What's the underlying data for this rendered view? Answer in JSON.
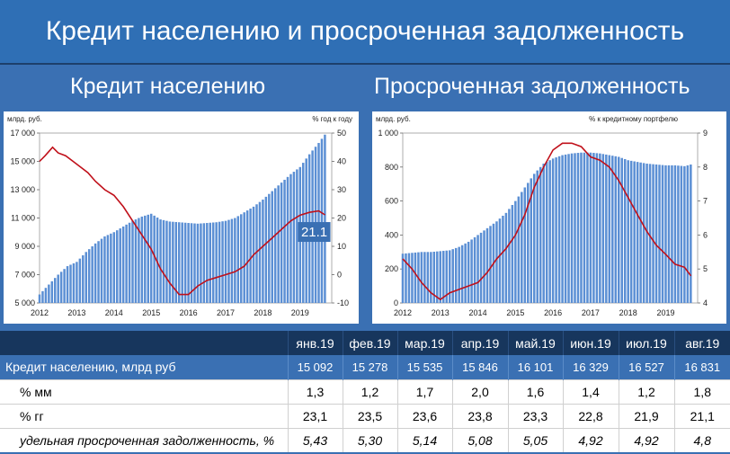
{
  "slide": {
    "title": "Кредит населению и просроченная задолженность",
    "left_title": "Кредит населению",
    "right_title": "Просроченная задолженность"
  },
  "chart_data": [
    {
      "type": "bar",
      "left_unit": "млрд. руб.",
      "right_unit": "% год к году",
      "x_labels": [
        "2012",
        "2013",
        "2014",
        "2015",
        "2016",
        "2017",
        "2018",
        "2019"
      ],
      "y_left_ticks": [
        "5 000",
        "7 000",
        "9 000",
        "11 000",
        "13 000",
        "15 000",
        "17 000"
      ],
      "y_right_ticks": [
        "-10",
        "0",
        "10",
        "20",
        "30",
        "40",
        "50"
      ],
      "ylim_left": [
        5000,
        17000
      ],
      "ylim_right": [
        -10,
        50
      ],
      "callout": "21.1",
      "bar_color": "#5b8fd4",
      "line_color": "#c0101a",
      "series": [
        {
          "name": "",
          "kind": "bar",
          "axis": "left",
          "x": [
            2012.0,
            2012.25,
            2012.5,
            2012.75,
            2013.0,
            2013.25,
            2013.5,
            2013.75,
            2014.0,
            2014.25,
            2014.5,
            2014.75,
            2015.0,
            2015.25,
            2015.5,
            2015.75,
            2016.0,
            2016.25,
            2016.5,
            2016.75,
            2017.0,
            2017.25,
            2017.5,
            2017.75,
            2018.0,
            2018.25,
            2018.5,
            2018.75,
            2019.0,
            2019.25,
            2019.5,
            2019.67
          ],
          "values": [
            5600,
            6300,
            7000,
            7600,
            7900,
            8600,
            9200,
            9700,
            10000,
            10400,
            10800,
            11100,
            11300,
            10900,
            10750,
            10700,
            10650,
            10600,
            10650,
            10700,
            10800,
            11000,
            11400,
            11800,
            12300,
            12900,
            13500,
            14100,
            14600,
            15500,
            16300,
            16900
          ]
        },
        {
          "name": "",
          "kind": "line",
          "axis": "right",
          "x": [
            2012.0,
            2012.15,
            2012.35,
            2012.5,
            2012.7,
            2012.9,
            2013.1,
            2013.3,
            2013.5,
            2013.75,
            2014.0,
            2014.25,
            2014.5,
            2014.75,
            2015.0,
            2015.25,
            2015.5,
            2015.75,
            2016.0,
            2016.25,
            2016.5,
            2016.75,
            2017.0,
            2017.25,
            2017.5,
            2017.75,
            2018.0,
            2018.25,
            2018.5,
            2018.75,
            2019.0,
            2019.25,
            2019.5,
            2019.67
          ],
          "values": [
            40,
            42,
            45,
            43,
            42,
            40,
            38,
            36,
            33,
            30,
            28,
            24,
            19,
            14,
            9,
            2,
            -3,
            -7,
            -7,
            -4,
            -2,
            -1,
            0,
            1,
            3,
            7,
            10,
            13,
            16,
            19,
            21,
            22,
            22.5,
            21.1
          ]
        }
      ]
    },
    {
      "type": "bar",
      "left_unit": "млрд. руб.",
      "right_unit": "% к кредитному портфелю",
      "x_labels": [
        "2012",
        "2013",
        "2014",
        "2015",
        "2016",
        "2017",
        "2018",
        "2019"
      ],
      "y_left_ticks": [
        "0",
        "200",
        "400",
        "600",
        "800",
        "1 000"
      ],
      "y_right_ticks": [
        "4",
        "5",
        "6",
        "7",
        "8",
        "9"
      ],
      "ylim_left": [
        0,
        1000
      ],
      "ylim_right": [
        4,
        9
      ],
      "bar_color": "#5b8fd4",
      "line_color": "#c0101a",
      "series": [
        {
          "name": "",
          "kind": "bar",
          "axis": "left",
          "x": [
            2012.0,
            2012.25,
            2012.5,
            2012.75,
            2013.0,
            2013.25,
            2013.5,
            2013.75,
            2014.0,
            2014.25,
            2014.5,
            2014.75,
            2015.0,
            2015.25,
            2015.5,
            2015.75,
            2016.0,
            2016.25,
            2016.5,
            2016.75,
            2017.0,
            2017.25,
            2017.5,
            2017.75,
            2018.0,
            2018.25,
            2018.5,
            2018.75,
            2019.0,
            2019.25,
            2019.5,
            2019.67
          ],
          "values": [
            290,
            295,
            300,
            300,
            305,
            310,
            330,
            360,
            400,
            440,
            480,
            530,
            600,
            680,
            760,
            820,
            850,
            870,
            880,
            885,
            885,
            880,
            870,
            860,
            840,
            830,
            820,
            815,
            810,
            810,
            805,
            815
          ]
        },
        {
          "name": "",
          "kind": "line",
          "axis": "right",
          "x": [
            2012.0,
            2012.25,
            2012.5,
            2012.75,
            2013.0,
            2013.25,
            2013.5,
            2013.75,
            2014.0,
            2014.25,
            2014.5,
            2014.75,
            2015.0,
            2015.25,
            2015.5,
            2015.75,
            2016.0,
            2016.25,
            2016.5,
            2016.75,
            2017.0,
            2017.25,
            2017.5,
            2017.75,
            2018.0,
            2018.25,
            2018.5,
            2018.75,
            2019.0,
            2019.25,
            2019.5,
            2019.67
          ],
          "values": [
            5.3,
            5.0,
            4.6,
            4.3,
            4.1,
            4.3,
            4.4,
            4.5,
            4.6,
            4.9,
            5.3,
            5.6,
            6.0,
            6.6,
            7.4,
            8.0,
            8.5,
            8.7,
            8.7,
            8.6,
            8.3,
            8.2,
            8.0,
            7.6,
            7.1,
            6.6,
            6.1,
            5.7,
            5.43,
            5.14,
            5.05,
            4.8
          ]
        }
      ]
    }
  ],
  "table": {
    "months": [
      "янв.19",
      "фев.19",
      "мар.19",
      "апр.19",
      "май.19",
      "июн.19",
      "июл.19",
      "авг.19"
    ],
    "rows": [
      {
        "label": "Кредит населению, млрд руб",
        "style": "main",
        "values": [
          "15 092",
          "15 278",
          "15 535",
          "15 846",
          "16 101",
          "16 329",
          "16 527",
          "16 831"
        ]
      },
      {
        "label": "% мм",
        "style": "plain",
        "values": [
          "1,3",
          "1,2",
          "1,7",
          "2,0",
          "1,6",
          "1,4",
          "1,2",
          "1,8"
        ]
      },
      {
        "label": "% гг",
        "style": "plain",
        "values": [
          "23,1",
          "23,5",
          "23,6",
          "23,8",
          "23,3",
          "22,8",
          "21,9",
          "21,1"
        ]
      },
      {
        "label": "удельная просроченная задолженность, %",
        "style": "italic",
        "values": [
          "5,43",
          "5,30",
          "5,14",
          "5,08",
          "5,05",
          "4,92",
          "4,92",
          "4,8"
        ]
      }
    ]
  }
}
